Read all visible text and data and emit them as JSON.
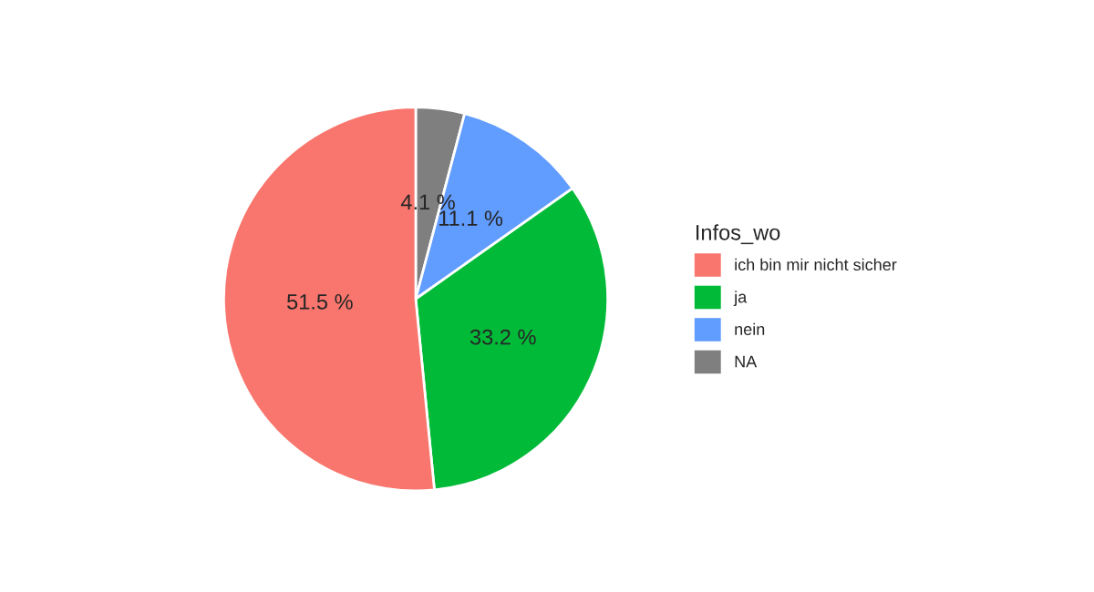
{
  "chart_data": {
    "type": "pie",
    "legend_title": "Infos_wo",
    "categories": [
      "ich bin mir nicht sicher",
      "ja",
      "nein",
      "NA"
    ],
    "values": [
      51.5,
      33.2,
      11.1,
      4.1
    ],
    "colors": [
      "#f8766d",
      "#00ba38",
      "#619cff",
      "#7f7f7f"
    ],
    "value_labels": [
      "51.5 %",
      "33.2 %",
      "11.1 %",
      "4.1 %"
    ],
    "legend": "right"
  }
}
